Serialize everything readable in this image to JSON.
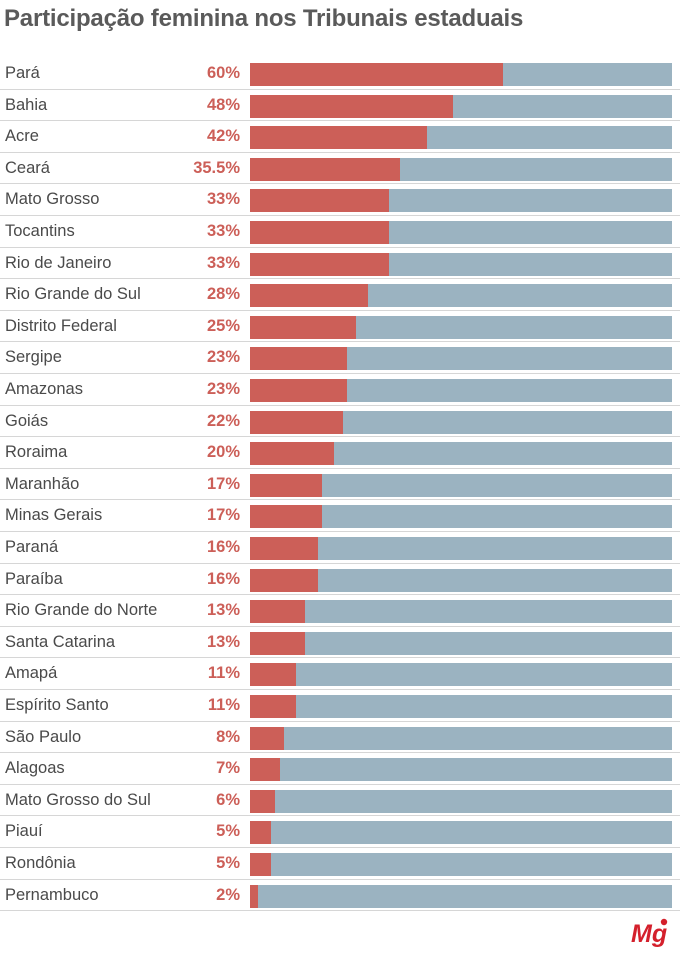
{
  "chart_data": {
    "type": "bar",
    "orientation": "horizontal",
    "title": "Participação feminina nos Tribunais estaduais",
    "categories": [
      "Pará",
      "Bahia",
      "Acre",
      "Ceará",
      "Mato Grosso",
      "Tocantins",
      "Rio de Janeiro",
      "Rio Grande do Sul",
      "Distrito Federal",
      "Sergipe",
      "Amazonas",
      "Goiás",
      "Roraima",
      "Maranhão",
      "Minas Gerais",
      "Paraná",
      "Paraíba",
      "Rio Grande do Norte",
      "Santa Catarina",
      "Amapá",
      "Espírito Santo",
      "São Paulo",
      "Alagoas",
      "Mato Grosso do Sul",
      "Piauí",
      "Rondônia",
      "Pernambuco"
    ],
    "values": [
      60,
      48,
      42,
      35.5,
      33,
      33,
      33,
      28,
      25,
      23,
      23,
      22,
      20,
      17,
      17,
      16,
      16,
      13,
      13,
      11,
      11,
      8,
      7,
      6,
      5,
      5,
      2
    ],
    "labels": [
      "60%",
      "48%",
      "42%",
      "35.5%",
      "33%",
      "33%",
      "33%",
      "28%",
      "25%",
      "23%",
      "23%",
      "22%",
      "20%",
      "17%",
      "17%",
      "16%",
      "16%",
      "13%",
      "13%",
      "11%",
      "11%",
      "8%",
      "7%",
      "6%",
      "5%",
      "5%",
      "2%"
    ],
    "xlim": [
      0,
      100
    ],
    "grid": false,
    "legend": "none"
  },
  "colors": {
    "female": "#cc5f58",
    "remainder": "#9bb3c1",
    "title": "#5a5a5a",
    "text": "#4a4a4a",
    "separator": "#d6d6d6"
  },
  "logo": {
    "text": "Mg",
    "color": "#d4202c"
  }
}
